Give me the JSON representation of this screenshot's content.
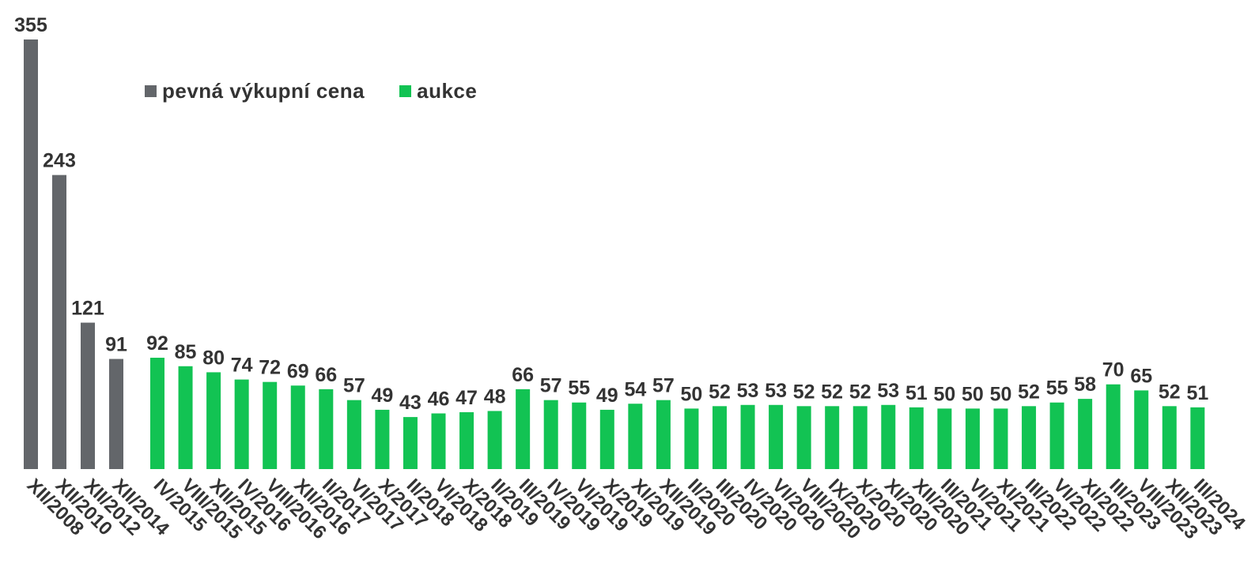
{
  "chart_data": {
    "type": "bar",
    "title": "",
    "xlabel": "",
    "ylabel": "",
    "ylim": [
      0,
      355
    ],
    "grid": false,
    "legend_position": "top-left",
    "colors": {
      "pevna": "#63666a",
      "aukce": "#12c353",
      "text": "#333333"
    },
    "series": [
      {
        "name": "pevná výkupní cena",
        "color": "#63666a",
        "key": "pevna"
      },
      {
        "name": "aukce",
        "color": "#12c353",
        "key": "aukce"
      }
    ],
    "categories": [
      "XII/2008",
      "XII/2010",
      "XII/2012",
      "XII/2014",
      "IV/2015",
      "VIII/2015",
      "XII/2015",
      "IV/2016",
      "VIII/2016",
      "XII/2016",
      "II/2017",
      "VI/2017",
      "X/2017",
      "II/2018",
      "VI/2018",
      "X/2018",
      "II/2019",
      "III/2019",
      "IV/2019",
      "VI/2019",
      "X/2019",
      "XI/2019",
      "XII/2019",
      "II/2020",
      "III/2020",
      "IV/2020",
      "VI/2020",
      "VIII/2020",
      "IX/2020",
      "X/2020",
      "XI/2020",
      "XII/2020",
      "III/2021",
      "VI/2021",
      "XI/2021",
      "III/2022",
      "VI/2022",
      "XI/2022",
      "III/2023",
      "VIII/2023",
      "XII/2023",
      "III/2024"
    ],
    "values": [
      355,
      243,
      121,
      91,
      92,
      85,
      80,
      74,
      72,
      69,
      66,
      57,
      49,
      43,
      46,
      47,
      48,
      66,
      57,
      55,
      49,
      54,
      57,
      50,
      52,
      53,
      53,
      52,
      52,
      52,
      53,
      51,
      50,
      50,
      50,
      52,
      55,
      58,
      70,
      65,
      52,
      51
    ],
    "series_of_point": [
      "pevna",
      "pevna",
      "pevna",
      "pevna",
      "aukce",
      "aukce",
      "aukce",
      "aukce",
      "aukce",
      "aukce",
      "aukce",
      "aukce",
      "aukce",
      "aukce",
      "aukce",
      "aukce",
      "aukce",
      "aukce",
      "aukce",
      "aukce",
      "aukce",
      "aukce",
      "aukce",
      "aukce",
      "aukce",
      "aukce",
      "aukce",
      "aukce",
      "aukce",
      "aukce",
      "aukce",
      "aukce",
      "aukce",
      "aukce",
      "aukce",
      "aukce",
      "aukce",
      "aukce",
      "aukce",
      "aukce",
      "aukce",
      "aukce"
    ]
  }
}
